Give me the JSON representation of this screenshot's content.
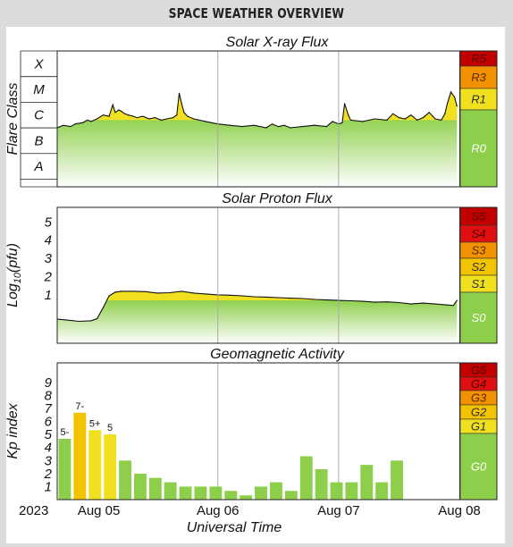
{
  "header": {
    "title": "SPACE WEATHER OVERVIEW"
  },
  "colors": {
    "green": "#8dcf4a",
    "yellow": "#f0e020",
    "gold": "#f2c400",
    "orange": "#f39200",
    "red": "#e01010",
    "darkred": "#c30000",
    "line": "#111111",
    "grid": "#aaaaaa"
  },
  "x_axis": {
    "title": "Universal Time",
    "labels": [
      "2023",
      "Aug 05",
      "Aug 06",
      "Aug 07",
      "Aug 08"
    ]
  },
  "chart_data": [
    {
      "type": "area",
      "title": "Solar X-ray Flux",
      "ylabel": "Flare Class",
      "y_categories": [
        "A",
        "B",
        "C",
        "M",
        "X"
      ],
      "x_unit": "days since 2023-08-05 00:00 UT",
      "xlim": [
        -0.33,
        3.0
      ],
      "y_unit": "flare class level (A=0, B=1, C=2, M=3, X=4)",
      "ylim": [
        -0.3,
        5.0
      ],
      "x": [
        -0.33,
        -0.28,
        -0.22,
        -0.18,
        -0.12,
        -0.08,
        -0.05,
        0.0,
        0.05,
        0.1,
        0.13,
        0.15,
        0.18,
        0.2,
        0.23,
        0.26,
        0.3,
        0.33,
        0.38,
        0.43,
        0.48,
        0.53,
        0.58,
        0.63,
        0.66,
        0.68,
        0.7,
        0.72,
        0.75,
        0.8,
        0.9,
        1.0,
        1.1,
        1.2,
        1.3,
        1.4,
        1.45,
        1.5,
        1.55,
        1.6,
        1.7,
        1.8,
        1.9,
        1.95,
        2.0,
        2.03,
        2.05,
        2.08,
        2.1,
        2.2,
        2.3,
        2.4,
        2.45,
        2.5,
        2.55,
        2.6,
        2.65,
        2.7,
        2.75,
        2.8,
        2.85,
        2.88,
        2.9,
        2.93,
        2.96,
        2.98
      ],
      "y": [
        2.0,
        2.1,
        2.05,
        2.15,
        2.2,
        2.3,
        2.25,
        2.35,
        2.5,
        2.45,
        2.9,
        2.6,
        2.7,
        2.65,
        2.55,
        2.5,
        2.45,
        2.4,
        2.45,
        2.35,
        2.4,
        2.3,
        2.35,
        2.4,
        2.5,
        3.35,
        2.95,
        2.6,
        2.45,
        2.35,
        2.25,
        2.15,
        2.1,
        2.05,
        2.1,
        2.0,
        2.15,
        2.05,
        2.1,
        2.0,
        2.05,
        2.1,
        2.05,
        2.25,
        2.15,
        2.2,
        2.95,
        2.5,
        2.3,
        2.25,
        2.35,
        2.3,
        2.55,
        2.4,
        2.35,
        2.5,
        2.3,
        2.4,
        2.6,
        2.35,
        2.3,
        2.55,
        2.95,
        3.4,
        3.2,
        2.85
      ],
      "scale_labels": [
        "R5",
        "R3",
        "R1",
        "R0"
      ]
    },
    {
      "type": "area",
      "title": "Solar Proton Flux",
      "ylabel": "Log10(pfu)",
      "ylabel_parts": {
        "base": "Log",
        "sub": "10",
        "rest": "(pfu)"
      },
      "yticks": [
        1,
        2,
        3,
        4,
        5
      ],
      "x_unit": "days since 2023-08-05 00:00 UT",
      "xlim": [
        -0.33,
        3.0
      ],
      "ylim": [
        -1.65,
        5.8
      ],
      "x": [
        -0.33,
        -0.25,
        -0.15,
        -0.05,
        0.0,
        0.05,
        0.1,
        0.15,
        0.2,
        0.3,
        0.4,
        0.5,
        0.6,
        0.7,
        0.8,
        0.9,
        1.0,
        1.1,
        1.2,
        1.3,
        1.4,
        1.5,
        1.6,
        1.7,
        1.8,
        1.9,
        2.0,
        2.1,
        2.2,
        2.3,
        2.4,
        2.5,
        2.6,
        2.7,
        2.8,
        2.9,
        2.95,
        2.98
      ],
      "y": [
        -0.33,
        -0.38,
        -0.45,
        -0.42,
        -0.3,
        0.3,
        0.95,
        1.15,
        1.2,
        1.2,
        1.18,
        1.1,
        1.12,
        1.2,
        1.1,
        1.05,
        1.0,
        0.98,
        0.95,
        0.9,
        0.88,
        0.85,
        0.82,
        0.8,
        0.75,
        0.72,
        0.7,
        0.68,
        0.65,
        0.6,
        0.62,
        0.58,
        0.5,
        0.55,
        0.5,
        0.45,
        0.42,
        0.7
      ],
      "scale_labels": [
        "S5",
        "S4",
        "S3",
        "S2",
        "S1",
        "S0"
      ]
    },
    {
      "type": "bar",
      "title": "Geomagnetic Activity",
      "ylabel": "Kp index",
      "yticks": [
        1,
        2,
        3,
        4,
        5,
        6,
        7,
        8,
        9
      ],
      "x_unit": "days since 2023-08-05 00:00 UT (3-hour bins)",
      "xlim": [
        -0.33,
        3.0
      ],
      "ylim": [
        0,
        10.5
      ],
      "x_start": -0.33,
      "bin_days": 0.125,
      "values": [
        4.67,
        6.67,
        5.33,
        5.0,
        3.0,
        2.0,
        1.67,
        1.33,
        1.0,
        1.0,
        1.0,
        0.67,
        0.33,
        1.0,
        1.33,
        0.67,
        3.33,
        2.33,
        1.33,
        1.33,
        2.67,
        1.33,
        3.0
      ],
      "bar_labels": [
        "5-",
        "7-",
        "5+",
        "5",
        "",
        "",
        "",
        "",
        "",
        "",
        "",
        "",
        "",
        "",
        "",
        "",
        "",
        "",
        "",
        "",
        "",
        "",
        ""
      ],
      "scale_labels": [
        "G5",
        "G4",
        "G3",
        "G2",
        "G1",
        "G0"
      ]
    }
  ]
}
